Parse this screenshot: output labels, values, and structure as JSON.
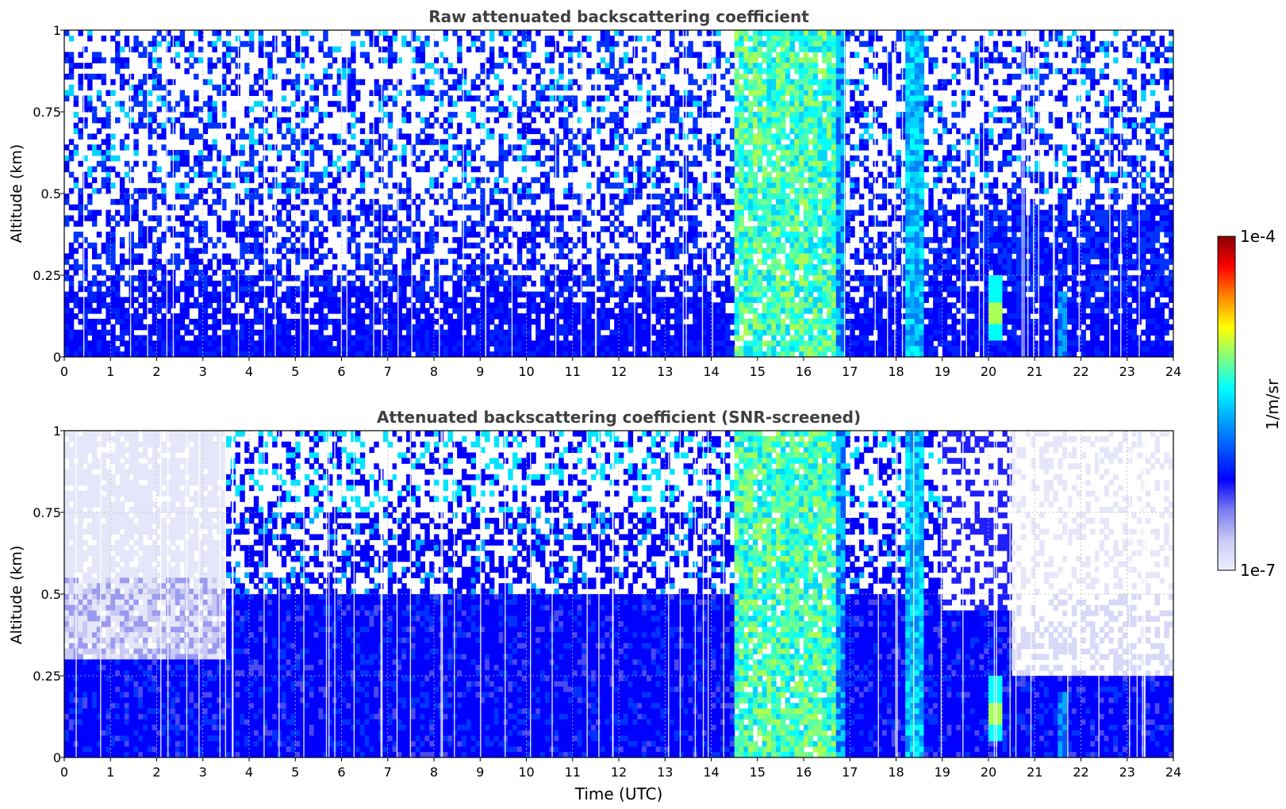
{
  "chart_data": [
    {
      "type": "heatmap",
      "title": "Raw attenuated backscattering coefficient",
      "xlabel": "",
      "ylabel": "Altitude (km)",
      "xlim": [
        0,
        24
      ],
      "ylim": [
        0,
        1
      ],
      "x_ticks": [
        "0",
        "1",
        "2",
        "3",
        "4",
        "5",
        "6",
        "7",
        "8",
        "9",
        "10",
        "11",
        "12",
        "13",
        "14",
        "15",
        "16",
        "17",
        "18",
        "19",
        "20",
        "21",
        "22",
        "23",
        "24"
      ],
      "y_ticks": [
        "0",
        "0.25",
        "0.5",
        "0.75",
        "1"
      ],
      "grid": true,
      "screened": false,
      "features": [
        {
          "x_start": 14.5,
          "x_end": 16.7,
          "description": "high backscatter column (green/cyan) through full altitude"
        },
        {
          "x_start": 18.2,
          "x_end": 18.6,
          "description": "cyan column"
        },
        {
          "x_start": 20.0,
          "x_end": 20.3,
          "y_start": 0.05,
          "y_end": 0.25,
          "description": "cyan plume"
        },
        {
          "x_start": 0,
          "x_end": 24,
          "y_start": 0,
          "y_end": 0.25,
          "description": "dense blue layer near ground"
        }
      ]
    },
    {
      "type": "heatmap",
      "title": "Attenuated backscattering coefficient (SNR-screened)",
      "xlabel": "Time (UTC)",
      "ylabel": "Altitude (km)",
      "xlim": [
        0,
        24
      ],
      "ylim": [
        0,
        1
      ],
      "x_ticks": [
        "0",
        "1",
        "2",
        "3",
        "4",
        "5",
        "6",
        "7",
        "8",
        "9",
        "10",
        "11",
        "12",
        "13",
        "14",
        "15",
        "16",
        "17",
        "18",
        "19",
        "20",
        "21",
        "22",
        "23",
        "24"
      ],
      "y_ticks": [
        "0",
        "0.25",
        "0.5",
        "0.75",
        "1"
      ],
      "grid": true,
      "screened": true,
      "features": [
        {
          "x_start": 14.5,
          "x_end": 16.8,
          "description": "high backscatter column (green/cyan)"
        },
        {
          "x_start": 18.2,
          "x_end": 18.6,
          "description": "cyan column"
        },
        {
          "x_start": 20.0,
          "x_end": 20.3,
          "y_start": 0.05,
          "y_end": 0.25,
          "description": "cyan plume"
        },
        {
          "x_start": 0,
          "x_end": 3.5,
          "y_start": 0.3,
          "y_end": 1,
          "description": "mostly white/lavender (screened)"
        },
        {
          "x_start": 20.5,
          "x_end": 24,
          "y_start": 0.25,
          "y_end": 1,
          "description": "white/lavender striped region"
        }
      ]
    }
  ],
  "colorbar": {
    "label": "1/m/sr",
    "max_label": "1e-4",
    "min_label": "1e-7",
    "colormap": [
      "#eeeeff",
      "#c8c8f5",
      "#7a7af0",
      "#0000ff",
      "#0055ff",
      "#00aaff",
      "#00ffff",
      "#7fff7f",
      "#ffff00",
      "#ff8800",
      "#ff0000",
      "#880000"
    ]
  }
}
